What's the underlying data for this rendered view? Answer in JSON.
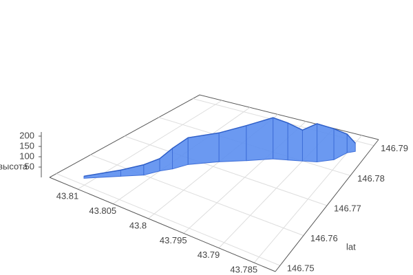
{
  "chart_data": {
    "type": "ribbon3d",
    "zlabel": "высота",
    "ylabel": "lat",
    "series": [
      {
        "color": "#5b8ef0",
        "x": [
          43.811,
          43.808,
          43.806,
          43.805,
          43.804,
          43.803,
          43.8,
          43.797,
          43.794,
          43.792,
          43.79,
          43.788,
          43.786,
          43.785,
          43.784
        ],
        "y": [
          146.752,
          146.757,
          146.76,
          146.763,
          146.765,
          146.768,
          146.772,
          146.775,
          146.778,
          146.779,
          146.78,
          146.781,
          146.783,
          146.786,
          146.787
        ],
        "z": [
          10,
          30,
          50,
          60,
          100,
          130,
          140,
          170,
          200,
          180,
          150,
          185,
          150,
          90,
          40
        ]
      }
    ],
    "xlim": [
      43.814,
      43.782
    ],
    "xticks": [
      43.81,
      43.805,
      43.8,
      43.795,
      43.79,
      43.785
    ],
    "ylim": [
      146.748,
      146.792
    ],
    "yticks": [
      146.75,
      146.76,
      146.77,
      146.78,
      146.79
    ],
    "zlim": [
      0,
      220
    ],
    "zticks": [
      50,
      100,
      150,
      200
    ],
    "grid": true
  }
}
